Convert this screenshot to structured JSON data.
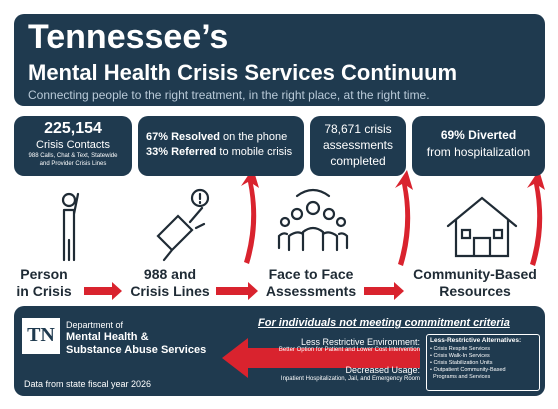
{
  "header": {
    "title": "Tennessee’s",
    "subtitle": "Mental Health Crisis Services Continuum",
    "tagline": "Connecting people to the right treatment, in the right place, at the right time."
  },
  "stats": [
    {
      "number": "225,154",
      "label": "Crisis Contacts",
      "detail": [
        "988 Calls, Chat & Text, Statewide",
        "and Provider Crisis Lines"
      ]
    },
    {
      "lines": [
        {
          "bold": "67% Resolved",
          "text": " on the phone"
        },
        {
          "bold": "33% Referred",
          "text": " to mobile crisis"
        }
      ]
    },
    {
      "lines": [
        "78,671 crisis",
        "assessments",
        "completed"
      ]
    },
    {
      "bold": "69% Diverted",
      "text": "from hospitalization"
    }
  ],
  "steps": [
    [
      "Person",
      "in Crisis"
    ],
    [
      "988 and",
      "Crisis Lines"
    ],
    [
      "Face to Face",
      "Assessments"
    ],
    [
      "Community-Based",
      "Resources"
    ]
  ],
  "footer": {
    "logo": "TN",
    "department": [
      "Department of",
      "Mental Health &",
      "Substance Abuse Services"
    ],
    "source": "Data from state fiscal year 2026",
    "heading": "For individuals not meeting commitment criteria",
    "less_restrictive": {
      "title": "Less Restrictive Environment:",
      "text": "Better Option for Patient and Lower Cost Intervention"
    },
    "decreased": {
      "title": "Decreased Usage:",
      "text": "Inpatient Hospitalization, Jail, and Emergency Room"
    },
    "alternatives": {
      "title": "Less-Restrictive Alternatives:",
      "items": [
        "• Crisis Respite Services",
        "• Crisis Walk-In Services",
        "• Crisis Stabilization Units",
        "• Outpatient Community-Based",
        "  Programs and Services"
      ]
    }
  }
}
